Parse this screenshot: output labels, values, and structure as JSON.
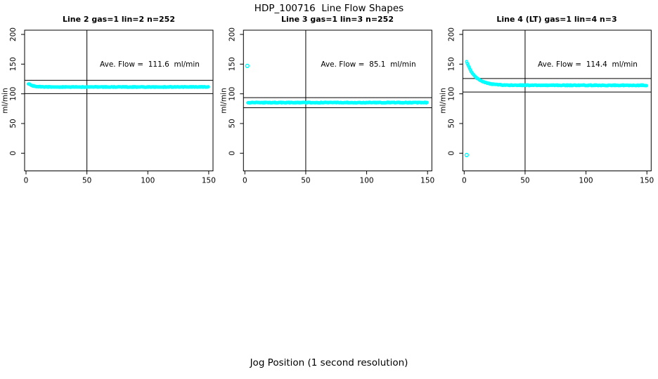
{
  "figure": {
    "title": "HDP_100716  Line Flow Shapes",
    "xlabel": "Jog Position (1 second resolution)",
    "background_color": "#FFFFFF",
    "point_color": "#00FFFF",
    "axis_color": "#000000"
  },
  "chart_data": {
    "type": "scatter",
    "title": "HDP_100716  Line Flow Shapes",
    "xlabel": "Jog Position (1 second resolution)",
    "ylabel": "ml/min",
    "x_ticks": [
      0,
      50,
      100,
      150
    ],
    "y_ticks": [
      0,
      50,
      100,
      150,
      200
    ],
    "xlim": [
      -6,
      156
    ],
    "ylim": [
      -30,
      215
    ],
    "grid": false,
    "legend": "none",
    "point_color": "#00FFFF",
    "panels": [
      {
        "title": "Line 2 gas=1 lin=2 n=252",
        "n": 252,
        "ave_flow": 111.6,
        "ave_flow_label": "Ave. Flow =  111.6  ml/min",
        "ylabel": "ml/min",
        "ref_lines": {
          "h": [
            122.8,
            100.4
          ],
          "v": 50
        },
        "flow_profile": {
          "x_start": 2,
          "x_end": 150,
          "step": 0.6,
          "flat": 111.5,
          "start_amp": 5.5,
          "decay_tau": 3.5,
          "jitter": 0.5
        },
        "outliers": []
      },
      {
        "title": "Line 3 gas=1 lin=3 n=252",
        "n": 252,
        "ave_flow": 85.1,
        "ave_flow_label": "Ave. Flow =  85.1  ml/min",
        "ylabel": "ml/min",
        "ref_lines": {
          "h": [
            93.6,
            76.6
          ],
          "v": 50
        },
        "flow_profile": {
          "x_start": 2.5,
          "x_end": 150,
          "step": 0.6,
          "flat": 85.2,
          "start_amp": 0,
          "decay_tau": 1,
          "jitter": 0.6
        },
        "outliers": [
          [
            2,
            147
          ]
        ]
      },
      {
        "title": "Line 4 (LT) gas=1 lin=4 n=3",
        "n": 3,
        "ave_flow": 114.4,
        "ave_flow_label": "Ave. Flow =  114.4  ml/min",
        "ylabel": "ml/min",
        "ref_lines": {
          "h": [
            125.8,
            103.0
          ],
          "v": 50
        },
        "flow_profile": {
          "x_start": 2,
          "x_end": 150,
          "step": 0.6,
          "flat": 114.3,
          "start_amp": 40,
          "decay_tau": 7,
          "jitter": 0.6
        },
        "outliers": [
          [
            2,
            -3
          ]
        ]
      }
    ]
  }
}
